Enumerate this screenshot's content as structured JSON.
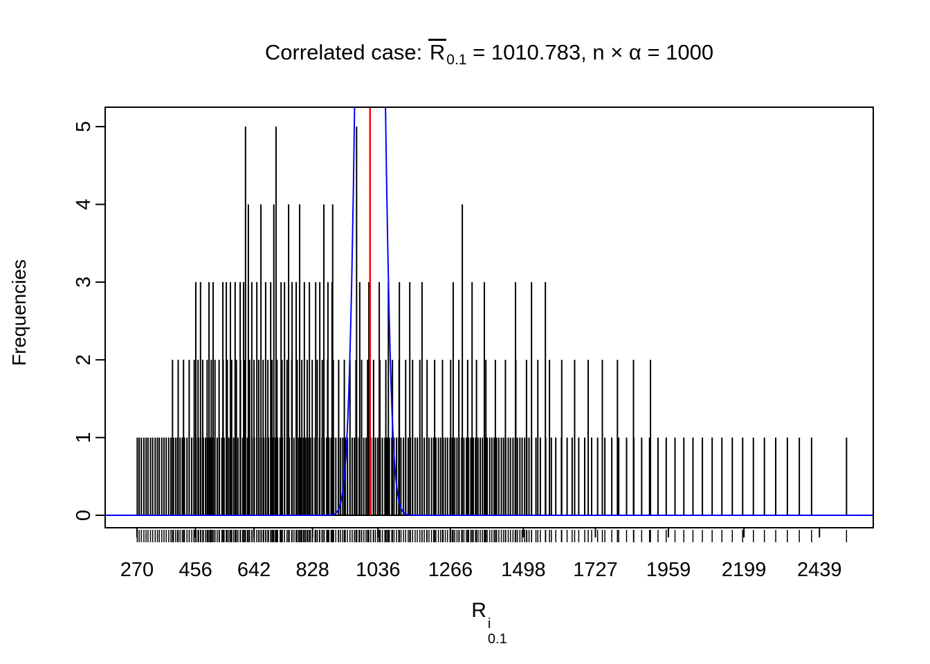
{
  "title": {
    "prefix": "Correlated case: ",
    "r_symbol": "R",
    "r_subscript": "0.1",
    "rest": " = 1010.783, n × α = 1000"
  },
  "y_axis": {
    "label": "Frequencies",
    "ticks": [
      0,
      1,
      2,
      3,
      4,
      5
    ]
  },
  "x_axis": {
    "ticks": [
      270,
      456,
      642,
      828,
      1036,
      1266,
      1498,
      1727,
      1959,
      2199,
      2439
    ],
    "label": {
      "base": "R",
      "sup": "i",
      "sub": "0.1"
    }
  },
  "chart_data": {
    "type": "bar",
    "title": "Correlated case: R̅0.1 = 1010.783, n × α = 1000",
    "xlabel": "R^i_0.1",
    "ylabel": "Frequencies",
    "x_range": [
      169,
      2610
    ],
    "y_range": [
      0,
      5.25
    ],
    "mean_line": {
      "x": 1010.783,
      "color": "#FF0000"
    },
    "density_curve": {
      "shape": "gaussian",
      "mu": 1010.783,
      "sigma": 30,
      "peak": 20,
      "color": "#0000FF"
    },
    "spike_color": "#000000",
    "spikes": {
      "5": [
        615,
        712,
        968
      ],
      "4": [
        624,
        664,
        705,
        752,
        787,
        864,
        892,
        1304
      ],
      "3": [
        457,
        472,
        499,
        512,
        543,
        554,
        567,
        582,
        598,
        609,
        635,
        651,
        679,
        695,
        728,
        739,
        763,
        776,
        802,
        818,
        838,
        851,
        877,
        890,
        978,
        1007,
        1040,
        1069,
        1104,
        1137,
        1176,
        1275,
        1335,
        1374,
        1473,
        1524,
        1568
      ],
      "2": [
        383,
        401,
        418,
        436,
        452,
        464,
        479,
        493,
        506,
        518,
        531,
        544,
        557,
        571,
        586,
        599,
        613,
        628,
        642,
        657,
        671,
        686,
        699,
        715,
        731,
        747,
        762,
        779,
        794,
        811,
        827,
        843,
        859,
        876,
        894,
        911,
        929,
        947,
        966,
        984,
        1003,
        1022,
        1042,
        1061,
        1082,
        1103,
        1124,
        1146,
        1169,
        1192,
        1216,
        1241,
        1267,
        1293,
        1321,
        1349,
        1379,
        1409,
        1441,
        1474,
        1508,
        1544,
        1581,
        1620,
        1661,
        1704,
        1749,
        1797,
        1848,
        1902
      ],
      "1": [
        271,
        277,
        284,
        292,
        299,
        305,
        313,
        320,
        328,
        335,
        341,
        349,
        356,
        363,
        371,
        378,
        386,
        393,
        399,
        407,
        414,
        421,
        429,
        436,
        444,
        451,
        458,
        466,
        473,
        481,
        488,
        495,
        503,
        510,
        517,
        525,
        532,
        540,
        547,
        554,
        562,
        569,
        577,
        584,
        591,
        599,
        606,
        614,
        621,
        628,
        636,
        643,
        651,
        658,
        665,
        673,
        680,
        688,
        695,
        702,
        710,
        717,
        725,
        732,
        739,
        747,
        754,
        762,
        769,
        776,
        784,
        791,
        799,
        806,
        813,
        821,
        828,
        836,
        843,
        850,
        858,
        865,
        873,
        880,
        887,
        895,
        902,
        910,
        917,
        924,
        932,
        939,
        947,
        954,
        961,
        969,
        976,
        984,
        991,
        998,
        1006,
        1013,
        1021,
        1028,
        1035,
        1043,
        1050,
        1058,
        1065,
        1072,
        1080,
        1087,
        1095,
        1102,
        1109,
        1117,
        1124,
        1132,
        1139,
        1146,
        1154,
        1161,
        1169,
        1176,
        1183,
        1191,
        1198,
        1206,
        1213,
        1220,
        1228,
        1235,
        1243,
        1250,
        1257,
        1265,
        1272,
        1280,
        1287,
        1294,
        1302,
        1309,
        1317,
        1324,
        1331,
        1339,
        1346,
        1354,
        1361,
        1368,
        1376,
        1383,
        1391,
        1398,
        1405,
        1413,
        1420,
        1428,
        1435,
        1442,
        1450,
        1457,
        1465,
        1472,
        1479,
        1487,
        1494,
        1502,
        1509,
        1516,
        1524,
        1538,
        1552,
        1569,
        1587,
        1601,
        1619,
        1637,
        1653,
        1674,
        1693,
        1715,
        1734,
        1757,
        1779,
        1801,
        1826,
        1849,
        1874,
        1899,
        1926,
        1952,
        1980,
        2008,
        2037,
        2067,
        2098,
        2129,
        2162,
        2195,
        2229,
        2264,
        2300,
        2337,
        2375,
        2414,
        2525
      ]
    }
  }
}
